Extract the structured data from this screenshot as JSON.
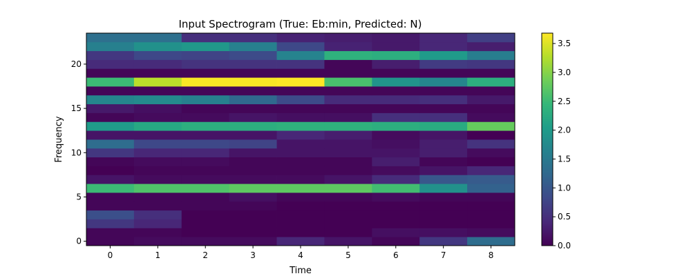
{
  "chart_data": {
    "type": "heatmap",
    "title": "Input Spectrogram (True: Eb:min, Predicted: N)",
    "xlabel": "Time",
    "ylabel": "Frequency",
    "x_ticks": [
      "0",
      "1",
      "2",
      "3",
      "4",
      "5",
      "6",
      "7",
      "8"
    ],
    "y_ticks": [
      "0",
      "5",
      "10",
      "15",
      "20"
    ],
    "colorbar_ticks": [
      "0.0",
      "0.5",
      "1.0",
      "1.5",
      "2.0",
      "2.5",
      "3.0",
      "3.5"
    ],
    "colormap": "viridis",
    "vmin": 0.0,
    "vmax": 3.68,
    "xlim": [
      -0.5,
      8.5
    ],
    "ylim": [
      -0.5,
      23.5
    ],
    "rows_bottom_to_top": [
      [
        0.05,
        0.1,
        0.1,
        0.1,
        0.4,
        0.2,
        0.05,
        0.6,
        1.3
      ],
      [
        0.05,
        0.05,
        0.0,
        0.0,
        0.0,
        0.0,
        0.15,
        0.15,
        0.1
      ],
      [
        0.6,
        0.4,
        0.0,
        0.0,
        0.0,
        0.0,
        0.0,
        0.0,
        0.0
      ],
      [
        0.9,
        0.5,
        0.0,
        0.0,
        0.0,
        0.0,
        0.0,
        0.0,
        0.0
      ],
      [
        0.05,
        0.05,
        0.05,
        0.05,
        0.0,
        0.0,
        0.0,
        0.0,
        0.0
      ],
      [
        0.05,
        0.05,
        0.05,
        0.15,
        0.05,
        0.05,
        0.1,
        0.05,
        0.05
      ],
      [
        2.5,
        2.65,
        2.65,
        2.75,
        2.75,
        2.75,
        2.55,
        1.85,
        1.15
      ],
      [
        0.2,
        0.1,
        0.1,
        0.1,
        0.1,
        0.2,
        0.45,
        1.0,
        1.05
      ],
      [
        0.0,
        0.05,
        0.05,
        0.05,
        0.05,
        0.05,
        0.1,
        0.2,
        0.4
      ],
      [
        0.05,
        0.1,
        0.1,
        0.05,
        0.05,
        0.05,
        0.3,
        0.05,
        0.0
      ],
      [
        0.6,
        0.4,
        0.4,
        0.2,
        0.2,
        0.2,
        0.2,
        0.3,
        0.1
      ],
      [
        1.3,
        0.8,
        0.8,
        0.75,
        0.2,
        0.2,
        0.15,
        0.3,
        0.55
      ],
      [
        0.2,
        0.2,
        0.2,
        0.2,
        0.4,
        0.3,
        0.1,
        0.2,
        0.0
      ],
      [
        2.0,
        2.2,
        2.3,
        2.3,
        2.35,
        2.35,
        2.3,
        2.25,
        2.8
      ],
      [
        0.05,
        0.1,
        0.1,
        0.2,
        0.15,
        0.15,
        0.5,
        0.5,
        0.1
      ],
      [
        0.25,
        0.15,
        0.05,
        0.05,
        0.05,
        0.05,
        0.05,
        0.05,
        0.05
      ],
      [
        1.7,
        1.75,
        1.6,
        1.25,
        0.85,
        0.45,
        0.45,
        0.5,
        0.25
      ],
      [
        0.05,
        0.05,
        0.05,
        0.05,
        0.05,
        0.05,
        0.05,
        0.05,
        0.05
      ],
      [
        2.5,
        3.3,
        3.65,
        3.65,
        3.68,
        2.6,
        1.9,
        1.7,
        2.3
      ],
      [
        0.05,
        0.05,
        0.05,
        0.05,
        0.05,
        0.05,
        0.05,
        0.05,
        0.05
      ],
      [
        0.45,
        0.45,
        0.55,
        0.55,
        0.55,
        0.05,
        0.3,
        0.65,
        0.6
      ],
      [
        0.6,
        0.8,
        0.75,
        0.85,
        1.65,
        2.35,
        2.3,
        2.0,
        1.55
      ],
      [
        1.6,
        1.85,
        1.95,
        1.6,
        0.8,
        0.35,
        0.25,
        0.4,
        0.3
      ],
      [
        1.35,
        1.35,
        0.5,
        0.5,
        0.35,
        0.3,
        0.25,
        0.4,
        0.7
      ]
    ]
  }
}
